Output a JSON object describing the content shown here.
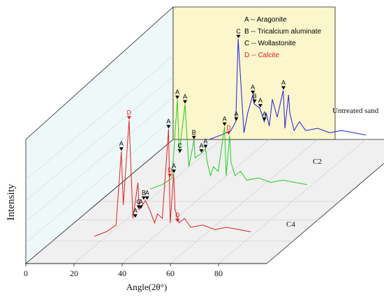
{
  "chart_data": {
    "type": "line",
    "xlabel": "Angle(2θ°)",
    "ylabel": "Intensity",
    "xlim": [
      0,
      100
    ],
    "x_ticks": [
      "0",
      "20",
      "40",
      "60",
      "80"
    ],
    "grid": true,
    "legend_position": "top-right",
    "legend": [
      {
        "code": "A",
        "name": "Aragonite",
        "text": "A -- Aragonite",
        "color": "#000000"
      },
      {
        "code": "B",
        "name": "Tricalcium aluminate",
        "text": "B -- Tricalcium aluminate",
        "color": "#000000"
      },
      {
        "code": "C",
        "name": "Wollastonite",
        "text": "C -- Wollastonite",
        "color": "#000000"
      },
      {
        "code": "D",
        "name": "Calcite",
        "text": "D -- Calcite",
        "color": "#e02020"
      }
    ],
    "series": [
      {
        "name": "Untreated sand",
        "color": "#1f1fe0",
        "x": [
          15,
          20,
          24,
          26,
          27,
          29.4,
          31,
          33.1,
          33.6,
          36,
          37.8,
          38.6,
          39.9,
          41.2,
          43.2,
          45.7,
          46.4,
          47.9,
          48.4,
          50.2,
          52.4,
          55,
          60,
          65,
          70,
          75,
          80
        ],
        "y": [
          0,
          2,
          4,
          8,
          45,
          3,
          12,
          20,
          16,
          14,
          8,
          12,
          6,
          18,
          10,
          22,
          5,
          20,
          12,
          4,
          8,
          4,
          5,
          3,
          4,
          3,
          2
        ],
        "peaks": [
          {
            "label": "A",
            "x": 26.2
          },
          {
            "label": "C",
            "x": 27.1
          },
          {
            "label": "A",
            "x": 33.1
          },
          {
            "label": "B",
            "x": 33.8
          },
          {
            "label": "A",
            "x": 36.2
          },
          {
            "label": "A",
            "x": 37.9
          },
          {
            "label": "A",
            "x": 45.8
          }
        ]
      },
      {
        "name": "C2",
        "color": "#22cc22",
        "x": [
          15,
          20,
          24,
          26.2,
          27,
          29.4,
          31,
          33.1,
          33.6,
          36.2,
          37.9,
          38.6,
          40,
          41.2,
          43.2,
          45.8,
          46.5,
          47.9,
          48.5,
          50.2,
          52.4,
          55,
          60,
          65,
          70,
          75,
          80
        ],
        "y": [
          0,
          2,
          5,
          40,
          16,
          38,
          10,
          22,
          14,
          16,
          18,
          12,
          6,
          10,
          8,
          28,
          6,
          24,
          12,
          6,
          8,
          4,
          5,
          3,
          4,
          3,
          2
        ],
        "peaks": [
          {
            "label": "D",
            "x": 23.1
          },
          {
            "label": "A",
            "x": 26.2
          },
          {
            "label": "C",
            "x": 27.3
          },
          {
            "label": "A",
            "x": 29.4
          },
          {
            "label": "B",
            "x": 33.1
          },
          {
            "label": "A",
            "x": 36.2
          },
          {
            "label": "A",
            "x": 37.9
          },
          {
            "label": "A",
            "x": 45.8
          },
          {
            "label": "D",
            "x": 47.5
          }
        ]
      },
      {
        "name": "C4",
        "color": "#e02020",
        "x": [
          15,
          20,
          24,
          26.2,
          27,
          29.4,
          31,
          33.1,
          33.6,
          36.2,
          37.9,
          38.6,
          40,
          41.2,
          43.2,
          45.8,
          46.5,
          47.9,
          48.5,
          50.2,
          52.4,
          55,
          60,
          65,
          70,
          75,
          80
        ],
        "y": [
          0,
          2,
          5,
          38,
          14,
          52,
          8,
          24,
          12,
          16,
          12,
          10,
          6,
          10,
          8,
          48,
          6,
          28,
          12,
          6,
          8,
          4,
          5,
          3,
          4,
          3,
          2
        ],
        "peaks": [
          {
            "label": "A",
            "x": 26.2
          },
          {
            "label": "D",
            "x": 29.4
          },
          {
            "label": "A",
            "x": 32.0
          },
          {
            "label": "C",
            "x": 33.4
          },
          {
            "label": "A",
            "x": 34.3
          },
          {
            "label": "B",
            "x": 35.5
          },
          {
            "label": "A",
            "x": 36.9
          },
          {
            "label": "A",
            "x": 45.8
          },
          {
            "label": "A",
            "x": 48.0
          },
          {
            "label": "D",
            "x": 49.5
          }
        ]
      }
    ]
  }
}
